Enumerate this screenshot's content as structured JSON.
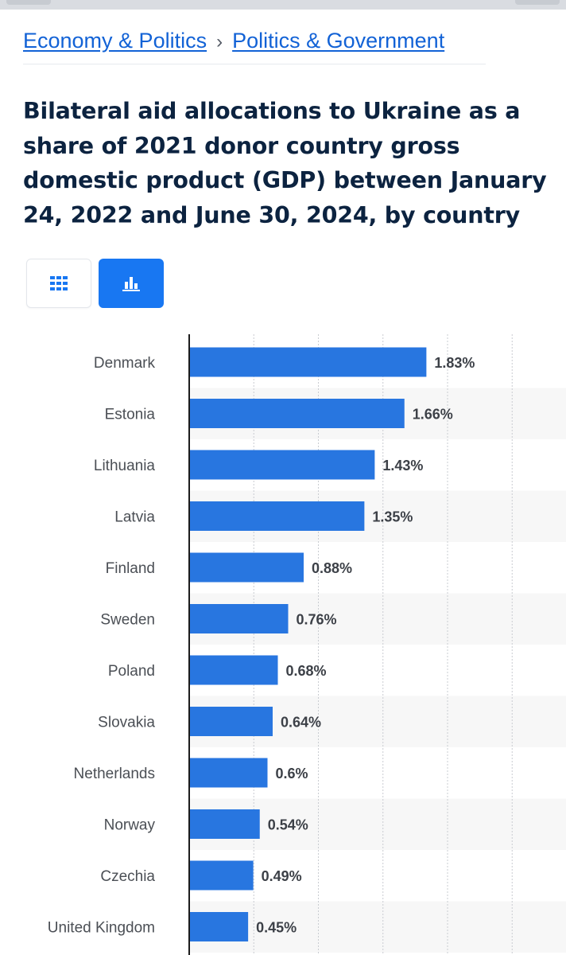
{
  "breadcrumb": {
    "items": [
      "Economy & Politics",
      "Politics & Government"
    ],
    "separator": "›"
  },
  "title": "Bilateral aid allocations to Ukraine as a share of 2021 donor country gross domestic product (GDP) between January 24, 2022 and June 30, 2024, by country",
  "view_toggle": {
    "table_icon": "grid-icon",
    "chart_icon": "bar-chart-icon",
    "active": "chart"
  },
  "colors": {
    "bar": "#2876e0",
    "accent": "#1877f2",
    "link": "#1262d6",
    "title": "#0c2340"
  },
  "chart_data": {
    "type": "bar",
    "orientation": "horizontal",
    "categories": [
      "Denmark",
      "Estonia",
      "Lithuania",
      "Latvia",
      "Finland",
      "Sweden",
      "Poland",
      "Slovakia",
      "Netherlands",
      "Norway",
      "Czechia",
      "United Kingdom"
    ],
    "values": [
      1.83,
      1.66,
      1.43,
      1.35,
      0.88,
      0.76,
      0.68,
      0.64,
      0.6,
      0.54,
      0.49,
      0.45
    ],
    "value_labels": [
      "1.83%",
      "1.66%",
      "1.43%",
      "1.35%",
      "0.88%",
      "0.76%",
      "0.68%",
      "0.64%",
      "0.6%",
      "0.54%",
      "0.49%",
      "0.45%"
    ],
    "unit": "%",
    "xlim": [
      0,
      2.5
    ],
    "grid": true
  }
}
